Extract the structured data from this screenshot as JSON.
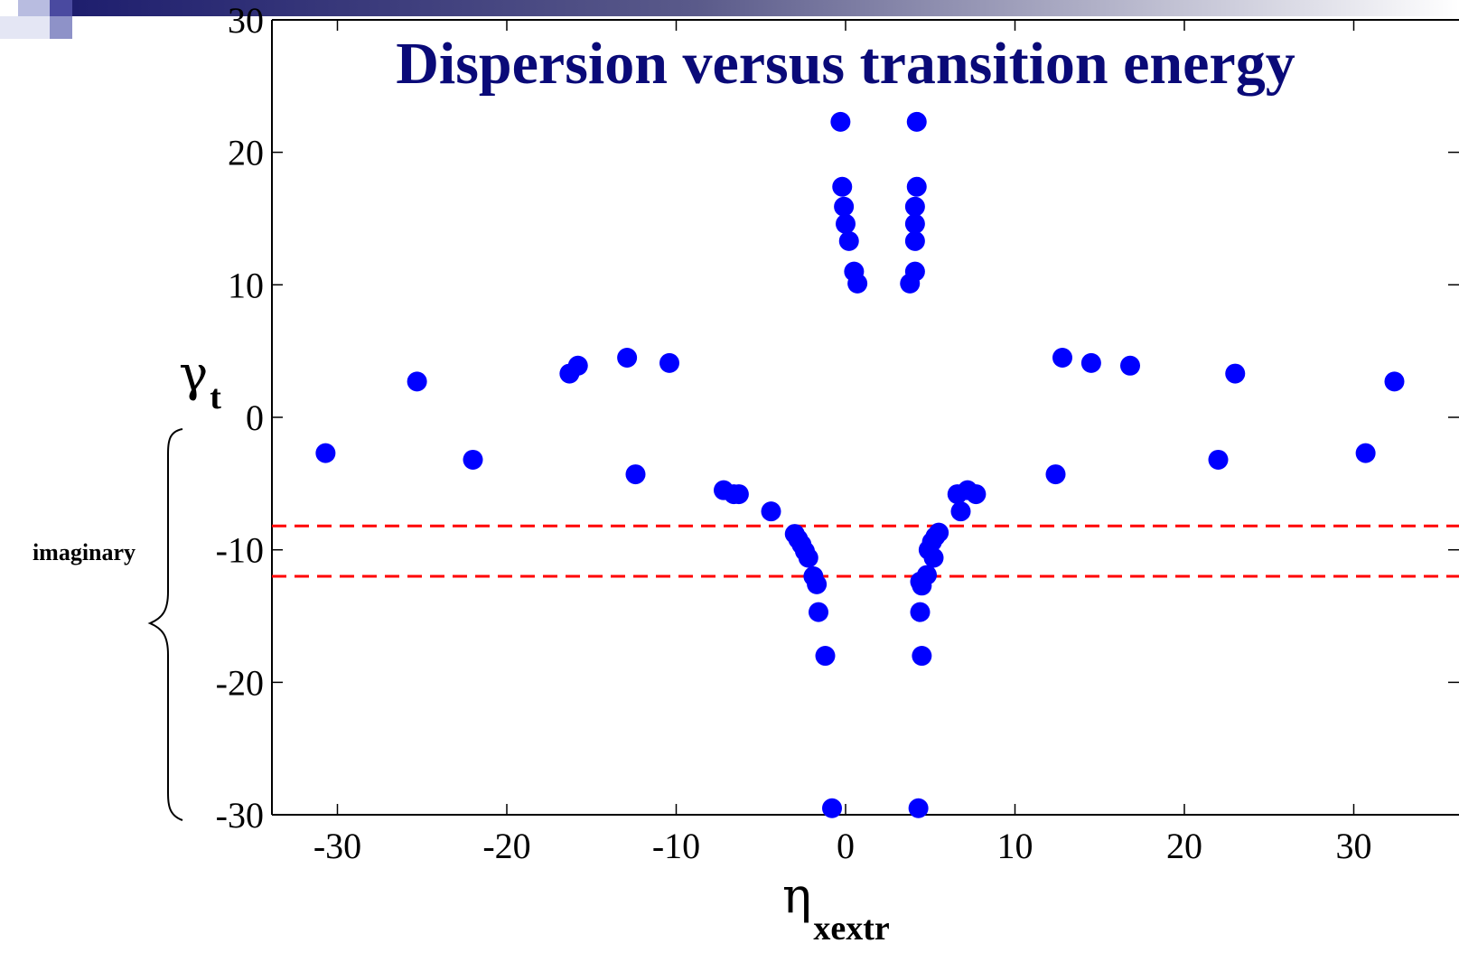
{
  "chart_data": {
    "type": "scatter",
    "title": "Dispersion versus transition energy",
    "xlabel": {
      "symbol": "η",
      "subscript": "xextr"
    },
    "ylabel": {
      "symbol": "γ",
      "subscript": "t"
    },
    "xlim": [
      -34,
      34
    ],
    "ylim": [
      -30,
      30
    ],
    "xticks": [
      -30,
      -20,
      -10,
      0,
      10,
      20,
      30
    ],
    "yticks": [
      -30,
      -20,
      -10,
      0,
      10,
      20,
      30
    ],
    "grid": false,
    "marker_color": "#0000ff",
    "series": [
      {
        "points": [
          [
            -0.3,
            22.3
          ],
          [
            4.2,
            22.3
          ],
          [
            -0.2,
            17.4
          ],
          [
            -0.1,
            15.9
          ],
          [
            0.0,
            14.6
          ],
          [
            0.2,
            13.3
          ],
          [
            0.5,
            11.0
          ],
          [
            0.7,
            10.1
          ],
          [
            4.2,
            17.4
          ],
          [
            4.1,
            15.9
          ],
          [
            4.1,
            14.6
          ],
          [
            4.1,
            13.3
          ],
          [
            4.1,
            11.0
          ],
          [
            3.8,
            10.1
          ],
          [
            -30.7,
            -2.7
          ],
          [
            -25.3,
            2.7
          ],
          [
            -22.0,
            -3.2
          ],
          [
            -16.3,
            3.3
          ],
          [
            -15.8,
            3.9
          ],
          [
            -12.9,
            4.5
          ],
          [
            -12.4,
            -4.3
          ],
          [
            -10.4,
            4.1
          ],
          [
            -7.2,
            -5.5
          ],
          [
            -6.6,
            -5.8
          ],
          [
            -6.3,
            -5.8
          ],
          [
            -4.4,
            -7.1
          ],
          [
            -3.0,
            -8.8
          ],
          [
            -2.8,
            -9.2
          ],
          [
            -2.6,
            -9.6
          ],
          [
            -2.4,
            -10.1
          ],
          [
            -2.2,
            -10.6
          ],
          [
            -1.9,
            -12.0
          ],
          [
            -1.7,
            -12.6
          ],
          [
            -1.6,
            -14.7
          ],
          [
            -1.2,
            -18.0
          ],
          [
            -0.8,
            -29.5
          ],
          [
            4.3,
            -29.5
          ],
          [
            4.5,
            -18.0
          ],
          [
            4.4,
            -14.7
          ],
          [
            4.5,
            -12.7
          ],
          [
            4.4,
            -12.4
          ],
          [
            4.8,
            -11.9
          ],
          [
            4.9,
            -10.0
          ],
          [
            5.2,
            -10.6
          ],
          [
            5.1,
            -9.4
          ],
          [
            5.3,
            -9.0
          ],
          [
            5.5,
            -8.7
          ],
          [
            6.6,
            -5.8
          ],
          [
            6.8,
            -7.1
          ],
          [
            7.2,
            -5.5
          ],
          [
            7.7,
            -5.8
          ],
          [
            12.4,
            -4.3
          ],
          [
            12.8,
            4.5
          ],
          [
            14.5,
            4.1
          ],
          [
            16.8,
            3.9
          ],
          [
            22.0,
            -3.2
          ],
          [
            23.0,
            3.3
          ],
          [
            30.7,
            -2.7
          ],
          [
            32.4,
            2.7
          ]
        ]
      }
    ],
    "reference_lines": [
      {
        "y": -8.2,
        "color": "#ff0000",
        "style": "dashed"
      },
      {
        "y": -12.0,
        "color": "#ff0000",
        "style": "dashed"
      }
    ],
    "annotations": [
      {
        "text": "imaginary",
        "range": [
          -30,
          0
        ]
      }
    ]
  }
}
